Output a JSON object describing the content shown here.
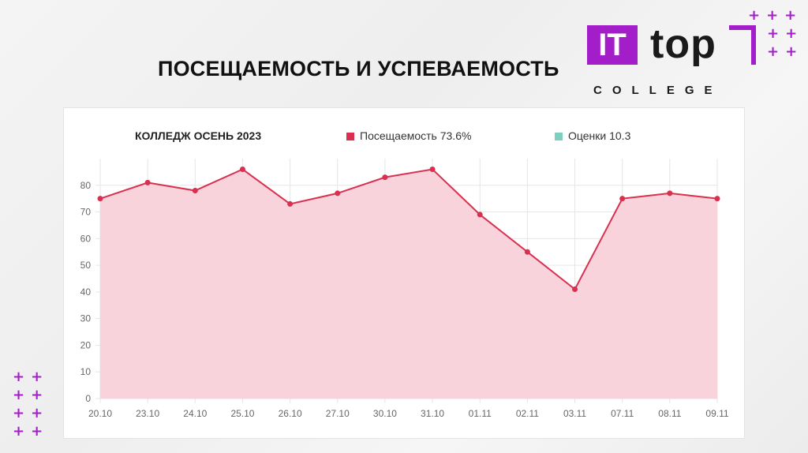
{
  "slide": {
    "title": "ПОСЕЩАЕМОСТЬ И УСПЕВАЕМОСТЬ"
  },
  "logo": {
    "it": "IT",
    "top": "top",
    "college": "COLLEGE",
    "brand_color": "#a31ec8"
  },
  "decor": {
    "plus_rows_top_right": [
      "+++",
      "++",
      "++"
    ],
    "plus_rows_bottom_left": [
      "++",
      "++",
      "++",
      "++"
    ]
  },
  "chart_data": {
    "type": "area",
    "title": "КОЛЛЕДЖ ОСЕНЬ 2023",
    "legend": [
      {
        "label": "Посещаемость 73.6%",
        "color": "#d9304f"
      },
      {
        "label": "Оценки 10.3",
        "color": "#7fcfc0"
      }
    ],
    "categories": [
      "20.10",
      "23.10",
      "24.10",
      "25.10",
      "26.10",
      "27.10",
      "30.10",
      "31.10",
      "01.11",
      "02.11",
      "03.11",
      "07.11",
      "08.11",
      "09.11"
    ],
    "series": [
      {
        "values": [
          75,
          81,
          78,
          86,
          73,
          77,
          83,
          86,
          69,
          55,
          41,
          75,
          77,
          75
        ],
        "line_color": "#d9304f",
        "fill_color": "#f8d3db"
      }
    ],
    "yticks": [
      0,
      10,
      20,
      30,
      40,
      50,
      60,
      70,
      80
    ],
    "ylim": [
      0,
      90
    ],
    "grid": true
  }
}
